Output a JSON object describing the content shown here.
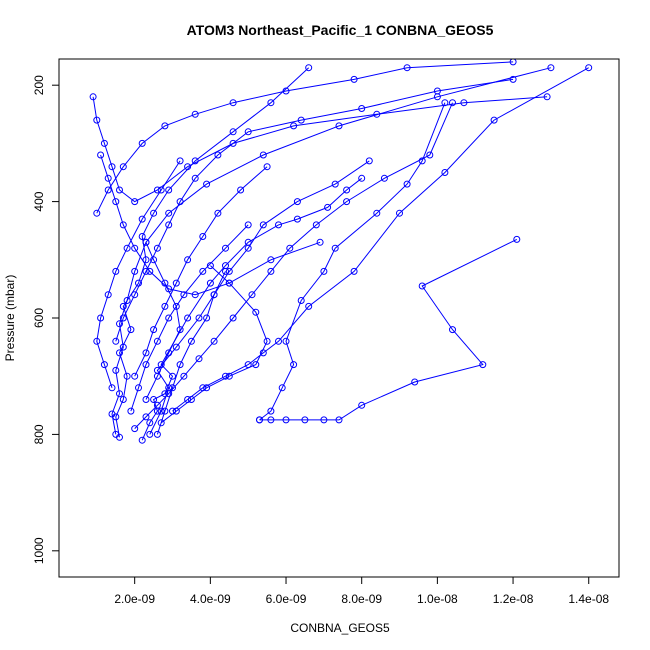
{
  "chart_data": {
    "type": "line",
    "title": "ATOM3 Northeast_Pacific_1 CONBNA_GEOS5",
    "xlabel": "CONBNA_GEOS5",
    "ylabel": "Pressure (mbar)",
    "xlim": [
      0,
      1.48e-08
    ],
    "ylim": [
      1045,
      155
    ],
    "y_reversed": true,
    "grid": false,
    "x_ticks": [
      2e-09,
      4e-09,
      6e-09,
      8e-09,
      1e-08,
      1.2e-08,
      1.4e-08
    ],
    "x_tick_labels": [
      "2.0e-09",
      "4.0e-09",
      "6.0e-09",
      "8.0e-09",
      "1.0e-08",
      "1.2e-08",
      "1.4e-08"
    ],
    "y_ticks": [
      200,
      400,
      600,
      800,
      1000
    ],
    "y_tick_labels": [
      "200",
      "400",
      "600",
      "800",
      "1000"
    ],
    "colors": {
      "series": "#0000ff",
      "axes": "#000000"
    },
    "marker": "open-circle",
    "series": [
      {
        "x": [
          2.2e-09,
          2.4e-09,
          2.6e-09,
          2.5e-09,
          2.8e-09,
          3e-09,
          2.7e-09,
          3.4e-09,
          4e-09,
          4.4e-09,
          5e-09,
          5.8e-09,
          6.3e-09,
          7.1e-09,
          7.6e-09,
          8e-09
        ],
        "y": [
          810,
          780,
          760,
          740,
          730,
          700,
          680,
          600,
          540,
          510,
          470,
          440,
          430,
          410,
          380,
          360
        ]
      },
      {
        "x": [
          1.6e-09,
          1.5e-09,
          1.7e-09,
          1.8e-09,
          1.6e-09,
          1.9e-09,
          1.7e-09,
          2.1e-09,
          2.3e-09,
          2.2e-09,
          2.5e-09,
          2.9e-09,
          3.6e-09,
          4.6e-09,
          5.6e-09,
          6.6e-09
        ],
        "y": [
          805,
          770,
          740,
          700,
          660,
          620,
          580,
          540,
          500,
          460,
          420,
          380,
          330,
          280,
          230,
          170
        ]
      },
      {
        "x": [
          2.4e-09,
          2.7e-09,
          2.9e-09,
          2.6e-09,
          3.1e-09,
          3.7e-09,
          4.1e-09,
          4.5e-09,
          5e-09,
          5.4e-09,
          6.3e-09,
          7.3e-09,
          8.2e-09
        ],
        "y": [
          800,
          760,
          720,
          690,
          650,
          600,
          560,
          520,
          480,
          440,
          400,
          370,
          330
        ]
      },
      {
        "x": [
          1.5e-09,
          1.4e-09,
          1.6e-09,
          1.5e-09,
          1.7e-09,
          1.6e-09,
          1.8e-09,
          2e-09,
          2.3e-09,
          2.9e-09,
          3.9e-09,
          5.4e-09,
          7.4e-09,
          1e-08,
          1.3e-08
        ],
        "y": [
          800,
          765,
          730,
          690,
          650,
          610,
          570,
          520,
          470,
          420,
          370,
          320,
          270,
          220,
          170
        ]
      },
      {
        "x": [
          5.3e-09,
          5.6e-09,
          5.9e-09,
          6.2e-09,
          6e-09,
          6.4e-09,
          7e-09,
          7.3e-09,
          8.4e-09,
          9.2e-09,
          9.6e-09,
          1.02e-08
        ],
        "y": [
          775,
          760,
          720,
          680,
          640,
          570,
          520,
          480,
          420,
          370,
          330,
          230
        ]
      },
      {
        "x": [
          3e-09,
          3.4e-09,
          3.8e-09,
          4.4e-09,
          5e-09,
          5.4e-09,
          5.8e-09,
          6.6e-09,
          7.8e-09,
          9e-09,
          1.02e-08,
          1.15e-08,
          1.4e-08
        ],
        "y": [
          760,
          740,
          720,
          700,
          680,
          660,
          640,
          580,
          520,
          420,
          350,
          260,
          170
        ]
      },
      {
        "x": [
          5.3e-09,
          5.6e-09,
          6e-09,
          6.5e-09,
          7e-09,
          7.4e-09,
          8e-09,
          9.4e-09,
          1.12e-08,
          1.04e-08,
          9.6e-09,
          1.21e-08
        ],
        "y": [
          775,
          775,
          775,
          775,
          775,
          775,
          750,
          710,
          680,
          620,
          545,
          465
        ]
      },
      {
        "x": [
          2.7e-09,
          3.1e-09,
          3.5e-09,
          3.9e-09,
          4.5e-09,
          5.2e-09,
          5.5e-09,
          5.2e-09,
          4.5e-09,
          4e-09
        ],
        "y": [
          780,
          760,
          740,
          720,
          700,
          680,
          640,
          590,
          540,
          510
        ]
      },
      {
        "x": [
          2e-09,
          2.3e-09,
          2.6e-09,
          2.9e-09,
          3.3e-09,
          3.7e-09,
          4.1e-09,
          4.6e-09,
          5.1e-09,
          5.6e-09,
          6.1e-09,
          6.8e-09,
          7.6e-09,
          8.6e-09,
          9.8e-09,
          1.04e-08
        ],
        "y": [
          790,
          770,
          750,
          730,
          700,
          670,
          640,
          600,
          560,
          520,
          480,
          440,
          400,
          360,
          320,
          230
        ]
      },
      {
        "x": [
          1.1e-09,
          1.3e-09,
          1.5e-09,
          1.7e-09,
          2e-09,
          2.4e-09,
          2.9e-09,
          3.6e-09,
          4.5e-09,
          5.6e-09,
          6.9e-09
        ],
        "y": [
          320,
          360,
          400,
          440,
          480,
          520,
          550,
          560,
          540,
          500,
          470
        ]
      },
      {
        "x": [
          9e-10,
          1e-09,
          1.2e-09,
          1.4e-09,
          1.6e-09,
          2e-09,
          2.6e-09,
          3.4e-09,
          4.6e-09,
          6.2e-09,
          8.4e-09,
          1.07e-08,
          1.29e-08
        ],
        "y": [
          220,
          260,
          300,
          340,
          380,
          400,
          380,
          340,
          300,
          270,
          250,
          230,
          220
        ]
      },
      {
        "x": [
          1.5e-09,
          1.7e-09,
          2e-09,
          2.3e-09,
          2.6e-09,
          2.9e-09,
          3.2e-09,
          3.6e-09,
          4.2e-09,
          5e-09,
          6.4e-09,
          8e-09,
          1e-08,
          1.2e-08
        ],
        "y": [
          640,
          600,
          560,
          520,
          480,
          440,
          400,
          360,
          320,
          280,
          260,
          240,
          210,
          190
        ]
      },
      {
        "x": [
          2.6e-09,
          2.8e-09,
          3e-09,
          3.2e-09,
          3.5e-09,
          3.9e-09,
          4.1e-09,
          4.4e-09
        ],
        "y": [
          800,
          760,
          720,
          680,
          640,
          600,
          560,
          520
        ]
      },
      {
        "x": [
          1.9e-09,
          2.1e-09,
          2.3e-09,
          2.6e-09,
          2.9e-09,
          3.3e-09,
          3.8e-09,
          4.4e-09,
          5e-09
        ],
        "y": [
          760,
          720,
          680,
          640,
          600,
          560,
          520,
          480,
          440
        ]
      },
      {
        "x": [
          2.3e-09,
          2.6e-09,
          2.9e-09,
          3.2e-09,
          3.1e-09,
          2.8e-09,
          2.5e-09,
          2.3e-09
        ],
        "y": [
          740,
          700,
          660,
          620,
          580,
          540,
          500,
          470
        ]
      },
      {
        "x": [
          1.4e-09,
          1.2e-09,
          1e-09,
          1.1e-09,
          1.3e-09,
          1.5e-09,
          1.8e-09,
          2.2e-09,
          2.7e-09,
          3.2e-09
        ],
        "y": [
          720,
          680,
          640,
          600,
          560,
          520,
          480,
          430,
          380,
          330
        ]
      },
      {
        "x": [
          2e-09,
          2.3e-09,
          2.5e-09,
          2.8e-09,
          3.1e-09,
          3.4e-09,
          3.8e-09,
          4.2e-09,
          4.8e-09,
          5.5e-09
        ],
        "y": [
          700,
          660,
          620,
          580,
          540,
          500,
          460,
          420,
          380,
          340
        ]
      },
      {
        "x": [
          1e-09,
          1.3e-09,
          1.7e-09,
          2.2e-09,
          2.8e-09,
          3.6e-09,
          4.6e-09,
          6e-09,
          7.8e-09,
          9.2e-09,
          1.2e-08
        ],
        "y": [
          420,
          380,
          340,
          300,
          270,
          250,
          230,
          210,
          190,
          170,
          160
        ]
      }
    ]
  }
}
